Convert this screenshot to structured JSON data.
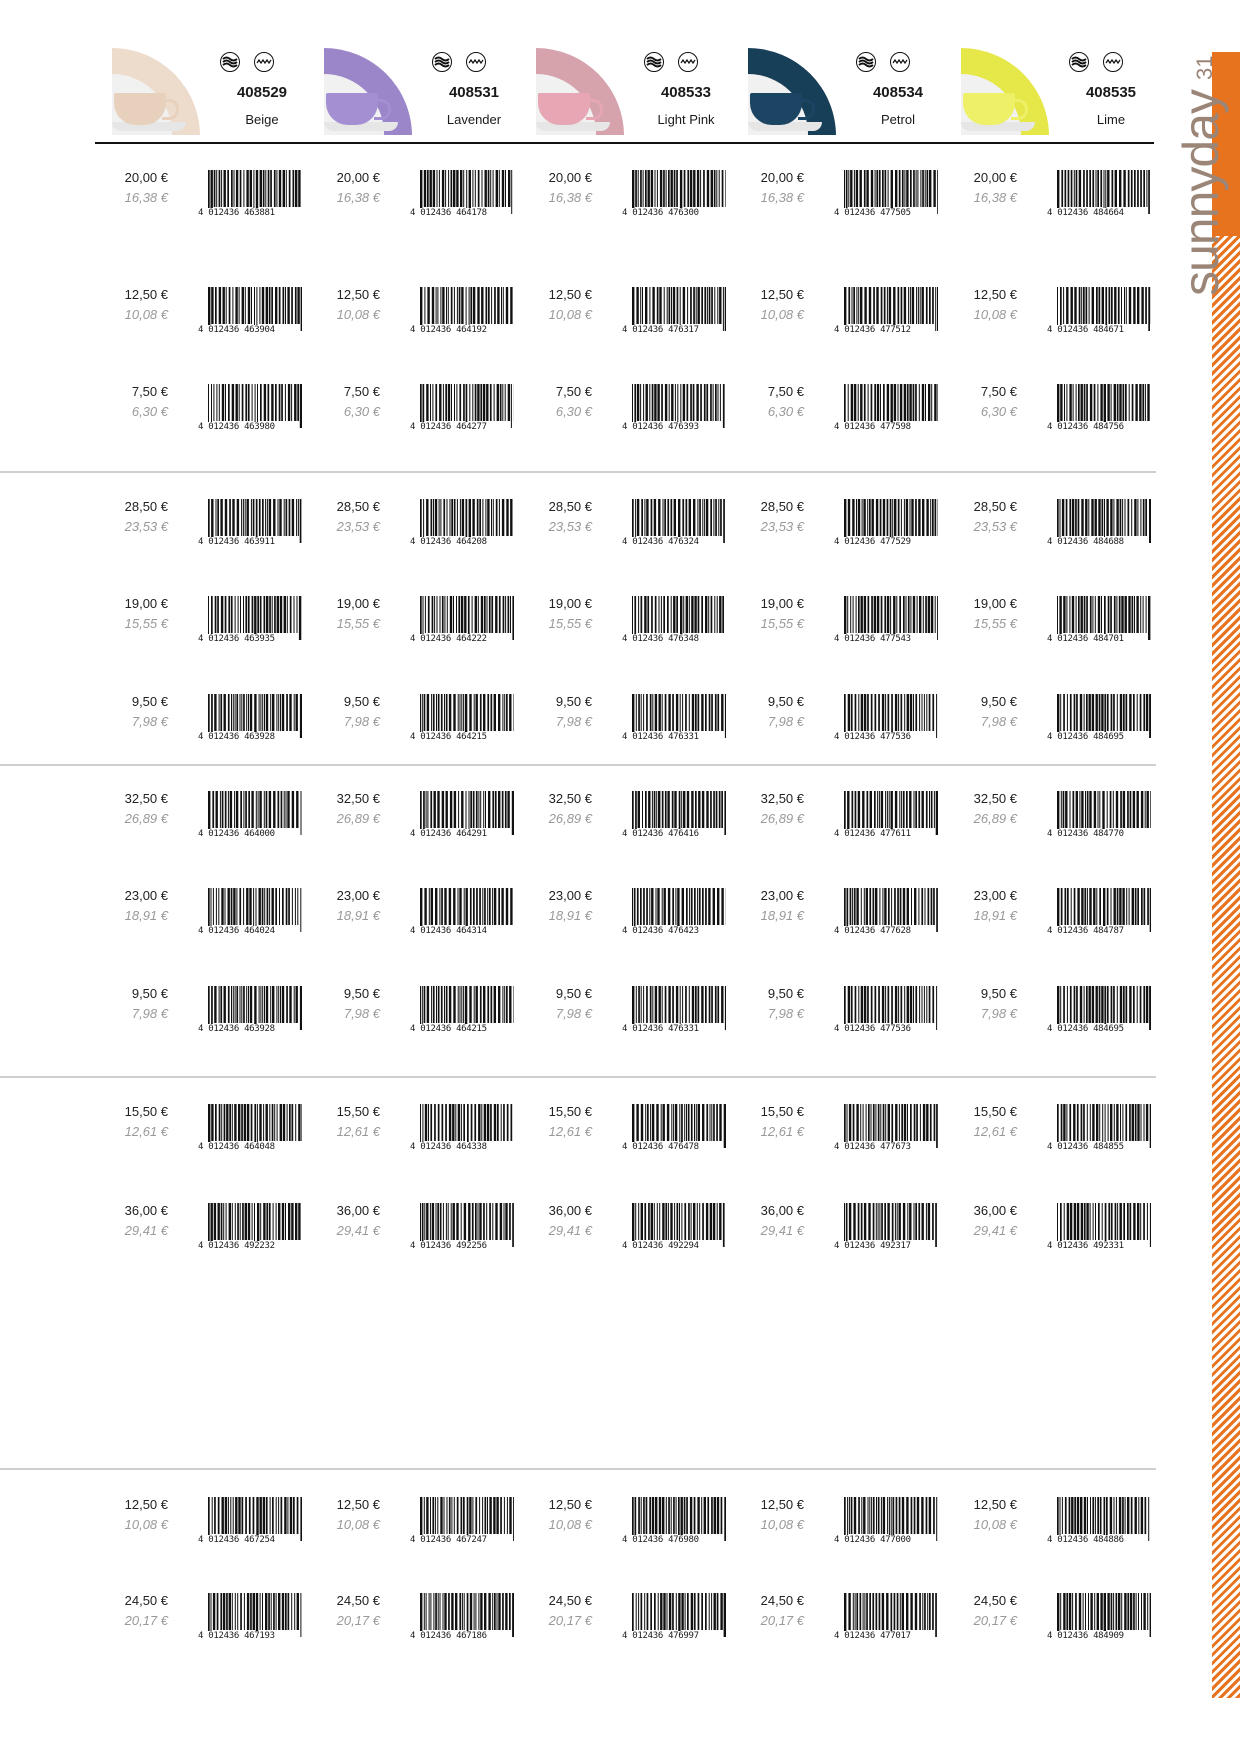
{
  "brand": {
    "name": "sunnyday",
    "page_number": "31",
    "accent_color": "#e8731f",
    "brand_text_color": "#9b8577"
  },
  "columns": [
    {
      "article": "408529",
      "color_name": "Beige",
      "swatch": "#eddccb",
      "cup": "#e7d1bd",
      "icons": [
        "dishwasher-icon",
        "microwave-icon"
      ]
    },
    {
      "article": "408531",
      "color_name": "Lavender",
      "swatch": "#9b86c9",
      "cup": "#a48fd2",
      "icons": [
        "dishwasher-icon",
        "microwave-icon"
      ]
    },
    {
      "article": "408533",
      "color_name": "Light Pink",
      "swatch": "#d6a3ad",
      "cup": "#e6a6b4",
      "icons": [
        "dishwasher-icon",
        "microwave-icon"
      ]
    },
    {
      "article": "408534",
      "color_name": "Petrol",
      "swatch": "#173f57",
      "cup": "#1c4563",
      "icons": [
        "dishwasher-icon",
        "microwave-icon"
      ]
    },
    {
      "article": "408535",
      "color_name": "Lime",
      "swatch": "#e6e748",
      "cup": "#eef067",
      "icons": [
        "dishwasher-icon",
        "microwave-icon"
      ]
    }
  ],
  "groups": [
    {
      "rows": [
        {
          "gross": "20,00 €",
          "net": "16,38 €",
          "eans": [
            "4 012436 463881",
            "4 012436 464178",
            "4 012436 476300",
            "4 012436 477505",
            "4 012436 484664"
          ]
        },
        {
          "gross": "12,50 €",
          "net": "10,08 €",
          "eans": [
            "4 012436 463904",
            "4 012436 464192",
            "4 012436 476317",
            "4 012436 477512",
            "4 012436 484671"
          ]
        },
        {
          "gross": "7,50 €",
          "net": "6,30 €",
          "eans": [
            "4 012436 463980",
            "4 012436 464277",
            "4 012436 476393",
            "4 012436 477598",
            "4 012436 484756"
          ]
        }
      ]
    },
    {
      "rows": [
        {
          "gross": "28,50 €",
          "net": "23,53 €",
          "eans": [
            "4 012436 463911",
            "4 012436 464208",
            "4 012436 476324",
            "4 012436 477529",
            "4 012436 484688"
          ]
        },
        {
          "gross": "19,00 €",
          "net": "15,55 €",
          "eans": [
            "4 012436 463935",
            "4 012436 464222",
            "4 012436 476348",
            "4 012436 477543",
            "4 012436 484701"
          ]
        },
        {
          "gross": "9,50 €",
          "net": "7,98 €",
          "eans": [
            "4 012436 463928",
            "4 012436 464215",
            "4 012436 476331",
            "4 012436 477536",
            "4 012436 484695"
          ]
        }
      ]
    },
    {
      "rows": [
        {
          "gross": "32,50 €",
          "net": "26,89 €",
          "eans": [
            "4 012436 464000",
            "4 012436 464291",
            "4 012436 476416",
            "4 012436 477611",
            "4 012436 484770"
          ]
        },
        {
          "gross": "23,00 €",
          "net": "18,91 €",
          "eans": [
            "4 012436 464024",
            "4 012436 464314",
            "4 012436 476423",
            "4 012436 477628",
            "4 012436 484787"
          ]
        },
        {
          "gross": "9,50 €",
          "net": "7,98 €",
          "eans": [
            "4 012436 463928",
            "4 012436 464215",
            "4 012436 476331",
            "4 012436 477536",
            "4 012436 484695"
          ]
        }
      ]
    },
    {
      "rows": [
        {
          "gross": "15,50 €",
          "net": "12,61 €",
          "eans": [
            "4 012436 464048",
            "4 012436 464338",
            "4 012436 476478",
            "4 012436 477673",
            "4 012436 484855"
          ]
        },
        {
          "gross": "36,00 €",
          "net": "29,41 €",
          "eans": [
            "4 012436 492232",
            "4 012436 492256",
            "4 012436 492294",
            "4 012436 492317",
            "4 012436 492331"
          ]
        }
      ]
    },
    {
      "rows": [
        {
          "gross": "12,50 €",
          "net": "10,08 €",
          "eans": [
            "4 012436 467254",
            "4 012436 467247",
            "4 012436 476980",
            "4 012436 477000",
            "4 012436 484886"
          ]
        },
        {
          "gross": "24,50 €",
          "net": "20,17 €",
          "eans": [
            "4 012436 467193",
            "4 012436 467186",
            "4 012436 476997",
            "4 012436 477017",
            "4 012436 484909"
          ]
        }
      ]
    }
  ]
}
